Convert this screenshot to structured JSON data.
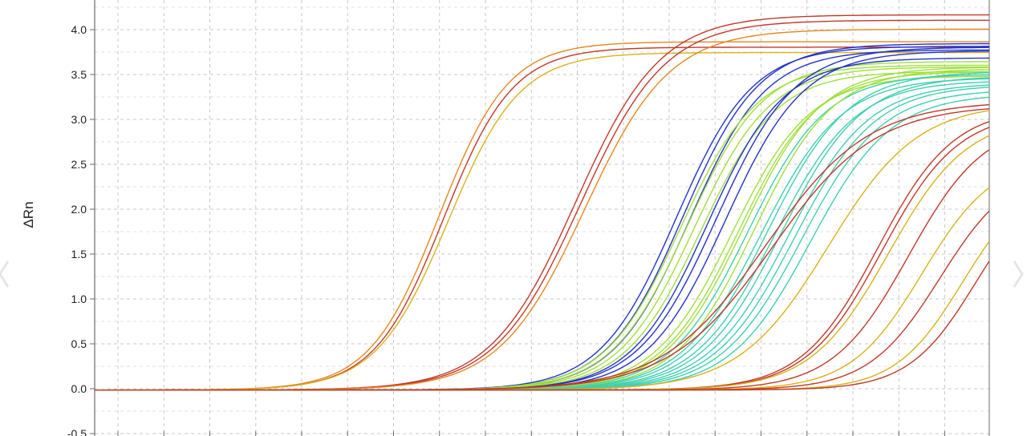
{
  "chart_data": {
    "type": "line",
    "title": "",
    "xlabel": "",
    "ylabel": "ΔRn",
    "ylim": [
      -0.5,
      4.3
    ],
    "xlim": [
      0,
      40
    ],
    "grid": true,
    "yticks": [
      "-0.5",
      "0.0",
      "0.5",
      "1.0",
      "1.5",
      "2.0",
      "2.5",
      "3.0",
      "3.5",
      "4.0"
    ],
    "colors": {
      "orange": "#e8861f",
      "red": "#c0392b",
      "yellow": "#d9b21a",
      "blue": "#2233cc",
      "lime": "#9fe03a",
      "teal": "#3fd0b0",
      "grid": "#c8c8c8",
      "axis": "#6b6b6b"
    },
    "curves": [
      {
        "ct": 15.4,
        "plateau": 3.88,
        "slope": 1.55,
        "color": "orange"
      },
      {
        "ct": 15.6,
        "plateau": 3.82,
        "slope": 1.55,
        "color": "red"
      },
      {
        "ct": 15.8,
        "plateau": 3.76,
        "slope": 1.6,
        "color": "yellow"
      },
      {
        "ct": 21.5,
        "plateau": 4.18,
        "slope": 1.9,
        "color": "red"
      },
      {
        "ct": 21.7,
        "plateau": 4.12,
        "slope": 1.9,
        "color": "red"
      },
      {
        "ct": 21.9,
        "plateau": 4.02,
        "slope": 1.9,
        "color": "orange"
      },
      {
        "ct": 26.0,
        "plateau": 3.83,
        "slope": 1.7,
        "color": "blue"
      },
      {
        "ct": 26.3,
        "plateau": 3.86,
        "slope": 1.7,
        "color": "blue"
      },
      {
        "ct": 26.6,
        "plateau": 3.79,
        "slope": 1.7,
        "color": "blue"
      },
      {
        "ct": 26.2,
        "plateau": 3.62,
        "slope": 1.7,
        "color": "lime"
      },
      {
        "ct": 26.5,
        "plateau": 3.66,
        "slope": 1.7,
        "color": "lime"
      },
      {
        "ct": 26.8,
        "plateau": 3.6,
        "slope": 1.7,
        "color": "lime"
      },
      {
        "ct": 27.1,
        "plateau": 3.55,
        "slope": 1.7,
        "color": "lime"
      },
      {
        "ct": 27.4,
        "plateau": 3.7,
        "slope": 1.7,
        "color": "blue"
      },
      {
        "ct": 27.8,
        "plateau": 3.82,
        "slope": 1.75,
        "color": "blue"
      },
      {
        "ct": 28.2,
        "plateau": 3.78,
        "slope": 1.75,
        "color": "blue"
      },
      {
        "ct": 28.5,
        "plateau": 3.5,
        "slope": 1.75,
        "color": "lime"
      },
      {
        "ct": 28.8,
        "plateau": 3.55,
        "slope": 1.75,
        "color": "lime"
      },
      {
        "ct": 29.0,
        "plateau": 3.6,
        "slope": 1.75,
        "color": "lime"
      },
      {
        "ct": 29.2,
        "plateau": 3.52,
        "slope": 1.75,
        "color": "teal"
      },
      {
        "ct": 29.5,
        "plateau": 3.58,
        "slope": 1.75,
        "color": "lime"
      },
      {
        "ct": 29.8,
        "plateau": 3.48,
        "slope": 1.8,
        "color": "teal"
      },
      {
        "ct": 30.1,
        "plateau": 3.55,
        "slope": 1.8,
        "color": "teal"
      },
      {
        "ct": 30.4,
        "plateau": 3.45,
        "slope": 1.8,
        "color": "teal"
      },
      {
        "ct": 30.7,
        "plateau": 3.5,
        "slope": 1.8,
        "color": "teal"
      },
      {
        "ct": 31.0,
        "plateau": 3.42,
        "slope": 1.8,
        "color": "teal"
      },
      {
        "ct": 31.3,
        "plateau": 3.4,
        "slope": 1.8,
        "color": "teal"
      },
      {
        "ct": 31.6,
        "plateau": 3.35,
        "slope": 1.8,
        "color": "teal"
      },
      {
        "ct": 32.0,
        "plateau": 3.3,
        "slope": 1.8,
        "color": "teal"
      },
      {
        "ct": 30.0,
        "plateau": 3.22,
        "slope": 2.3,
        "color": "red"
      },
      {
        "ct": 30.3,
        "plateau": 3.18,
        "slope": 2.3,
        "color": "red"
      },
      {
        "ct": 32.8,
        "plateau": 3.2,
        "slope": 2.0,
        "color": "yellow"
      },
      {
        "ct": 35.0,
        "plateau": 3.15,
        "slope": 1.7,
        "color": "red"
      },
      {
        "ct": 35.2,
        "plateau": 3.1,
        "slope": 1.7,
        "color": "red"
      },
      {
        "ct": 35.5,
        "plateau": 3.05,
        "slope": 1.75,
        "color": "yellow"
      },
      {
        "ct": 36.4,
        "plateau": 3.0,
        "slope": 1.7,
        "color": "red"
      },
      {
        "ct": 37.0,
        "plateau": 2.6,
        "slope": 1.6,
        "color": "yellow"
      },
      {
        "ct": 37.8,
        "plateau": 2.5,
        "slope": 1.6,
        "color": "red"
      },
      {
        "ct": 38.8,
        "plateau": 2.4,
        "slope": 1.5,
        "color": "yellow"
      },
      {
        "ct": 39.4,
        "plateau": 2.4,
        "slope": 1.5,
        "color": "red"
      }
    ]
  },
  "nav": {
    "left_arrow_icon": "chevron-left-icon",
    "right_arrow_icon": "chevron-right-icon"
  }
}
